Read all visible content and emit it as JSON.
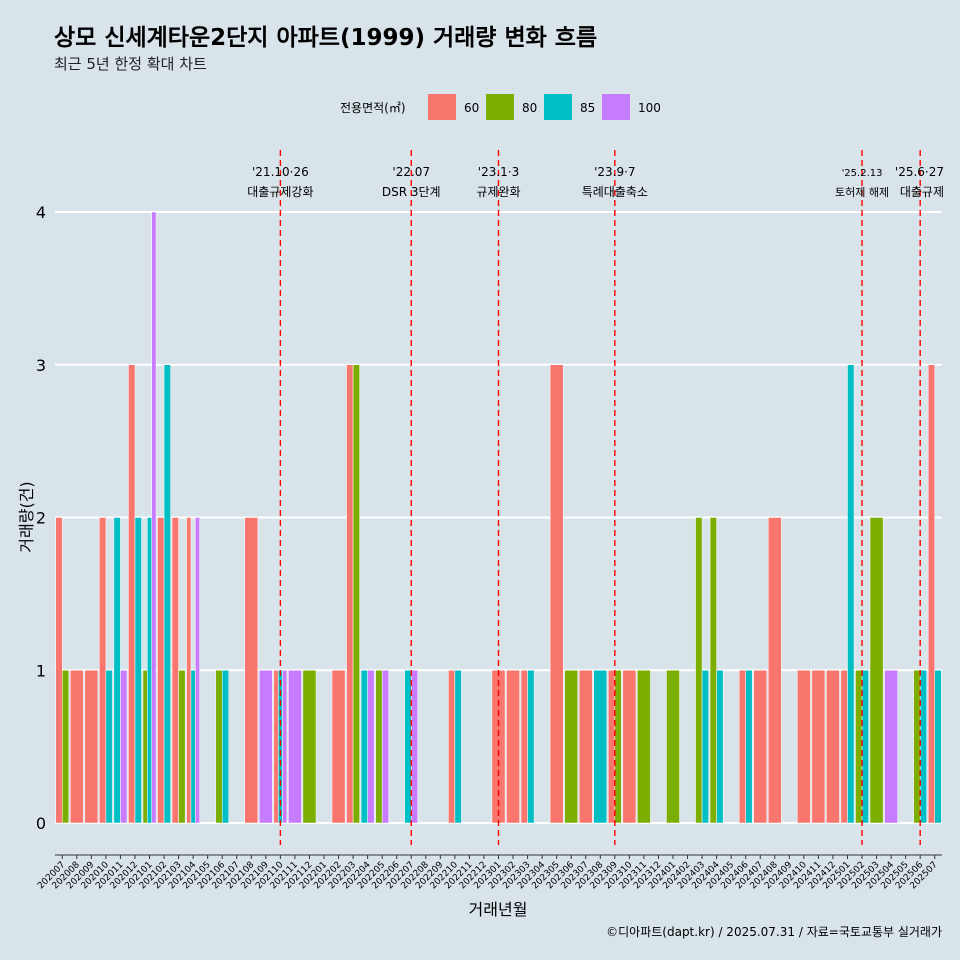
{
  "chart_data": {
    "type": "bar",
    "title": "상모 신세계타운2단지 아파트(1999) 거래량 변화 흐름",
    "subtitle": "최근 5년 한정 확대 차트",
    "xlabel": "거래년월",
    "ylabel": "거래량(건)",
    "caption": "©디아파트(dapt.kr) / 2025.07.31 / 자료=국토교통부 실거래가",
    "legend": {
      "title": "전용면적(㎡)",
      "position": "top"
    },
    "ylim": [
      0,
      4
    ],
    "yticks": [
      0,
      1,
      2,
      3,
      4
    ],
    "grid": true,
    "months": [
      "202007",
      "202008",
      "202009",
      "202010",
      "202011",
      "202012",
      "202101",
      "202102",
      "202103",
      "202104",
      "202105",
      "202106",
      "202107",
      "202108",
      "202109",
      "202110",
      "202111",
      "202112",
      "202201",
      "202202",
      "202203",
      "202204",
      "202205",
      "202206",
      "202207",
      "202208",
      "202209",
      "202210",
      "202211",
      "202212",
      "202301",
      "202302",
      "202303",
      "202304",
      "202305",
      "202306",
      "202307",
      "202308",
      "202309",
      "202310",
      "202311",
      "202312",
      "202401",
      "202402",
      "202403",
      "202404",
      "202405",
      "202406",
      "202407",
      "202408",
      "202409",
      "202410",
      "202411",
      "202412",
      "202501",
      "202502",
      "202503",
      "202504",
      "202505",
      "202506",
      "202507"
    ],
    "series": [
      {
        "name": "60",
        "color": "#F8766D"
      },
      {
        "name": "80",
        "color": "#7CAE00"
      },
      {
        "name": "85",
        "color": "#00BFC4"
      },
      {
        "name": "100",
        "color": "#C77CFF"
      }
    ],
    "data": [
      {
        "month": "202007",
        "area": "60",
        "count": 2
      },
      {
        "month": "202007",
        "area": "80",
        "count": 1
      },
      {
        "month": "202008",
        "area": "60",
        "count": 1
      },
      {
        "month": "202009",
        "area": "60",
        "count": 1
      },
      {
        "month": "202010",
        "area": "60",
        "count": 2
      },
      {
        "month": "202010",
        "area": "85",
        "count": 1
      },
      {
        "month": "202011",
        "area": "85",
        "count": 2
      },
      {
        "month": "202011",
        "area": "100",
        "count": 1
      },
      {
        "month": "202012",
        "area": "60",
        "count": 3
      },
      {
        "month": "202012",
        "area": "85",
        "count": 2
      },
      {
        "month": "202101",
        "area": "80",
        "count": 1
      },
      {
        "month": "202101",
        "area": "85",
        "count": 2
      },
      {
        "month": "202101",
        "area": "100",
        "count": 4
      },
      {
        "month": "202102",
        "area": "60",
        "count": 2
      },
      {
        "month": "202102",
        "area": "85",
        "count": 3
      },
      {
        "month": "202103",
        "area": "60",
        "count": 2
      },
      {
        "month": "202103",
        "area": "80",
        "count": 1
      },
      {
        "month": "202104",
        "area": "60",
        "count": 2
      },
      {
        "month": "202104",
        "area": "85",
        "count": 1
      },
      {
        "month": "202104",
        "area": "100",
        "count": 2
      },
      {
        "month": "202106",
        "area": "80",
        "count": 1
      },
      {
        "month": "202106",
        "area": "85",
        "count": 1
      },
      {
        "month": "202108",
        "area": "60",
        "count": 2
      },
      {
        "month": "202109",
        "area": "100",
        "count": 1
      },
      {
        "month": "202110",
        "area": "60",
        "count": 1
      },
      {
        "month": "202110",
        "area": "85",
        "count": 1
      },
      {
        "month": "202110",
        "area": "100",
        "count": 1
      },
      {
        "month": "202111",
        "area": "100",
        "count": 1
      },
      {
        "month": "202112",
        "area": "80",
        "count": 1
      },
      {
        "month": "202202",
        "area": "60",
        "count": 1
      },
      {
        "month": "202203",
        "area": "60",
        "count": 3
      },
      {
        "month": "202203",
        "area": "80",
        "count": 3
      },
      {
        "month": "202204",
        "area": "85",
        "count": 1
      },
      {
        "month": "202204",
        "area": "100",
        "count": 1
      },
      {
        "month": "202205",
        "area": "80",
        "count": 1
      },
      {
        "month": "202205",
        "area": "100",
        "count": 1
      },
      {
        "month": "202207",
        "area": "85",
        "count": 1
      },
      {
        "month": "202207",
        "area": "100",
        "count": 1
      },
      {
        "month": "202210",
        "area": "60",
        "count": 1
      },
      {
        "month": "202210",
        "area": "85",
        "count": 1
      },
      {
        "month": "202301",
        "area": "60",
        "count": 1
      },
      {
        "month": "202302",
        "area": "60",
        "count": 1
      },
      {
        "month": "202303",
        "area": "60",
        "count": 1
      },
      {
        "month": "202303",
        "area": "85",
        "count": 1
      },
      {
        "month": "202305",
        "area": "60",
        "count": 3
      },
      {
        "month": "202306",
        "area": "80",
        "count": 1
      },
      {
        "month": "202307",
        "area": "60",
        "count": 1
      },
      {
        "month": "202308",
        "area": "85",
        "count": 1
      },
      {
        "month": "202309",
        "area": "60",
        "count": 1
      },
      {
        "month": "202309",
        "area": "80",
        "count": 1
      },
      {
        "month": "202310",
        "area": "60",
        "count": 1
      },
      {
        "month": "202311",
        "area": "80",
        "count": 1
      },
      {
        "month": "202401",
        "area": "80",
        "count": 1
      },
      {
        "month": "202403",
        "area": "80",
        "count": 2
      },
      {
        "month": "202403",
        "area": "85",
        "count": 1
      },
      {
        "month": "202404",
        "area": "85",
        "count": 1
      },
      {
        "month": "202404",
        "area": "80",
        "count": 2
      },
      {
        "month": "202406",
        "area": "60",
        "count": 1
      },
      {
        "month": "202406",
        "area": "85",
        "count": 1
      },
      {
        "month": "202407",
        "area": "60",
        "count": 1
      },
      {
        "month": "202408",
        "area": "60",
        "count": 2
      },
      {
        "month": "202410",
        "area": "60",
        "count": 1
      },
      {
        "month": "202411",
        "area": "60",
        "count": 1
      },
      {
        "month": "202412",
        "area": "60",
        "count": 1
      },
      {
        "month": "202501",
        "area": "60",
        "count": 1
      },
      {
        "month": "202501",
        "area": "85",
        "count": 3
      },
      {
        "month": "202502",
        "area": "80",
        "count": 1
      },
      {
        "month": "202502",
        "area": "85",
        "count": 1
      },
      {
        "month": "202503",
        "area": "80",
        "count": 2
      },
      {
        "month": "202504",
        "area": "100",
        "count": 1
      },
      {
        "month": "202506",
        "area": "85",
        "count": 1
      },
      {
        "month": "202506",
        "area": "80",
        "count": 1
      },
      {
        "month": "202507",
        "area": "60",
        "count": 3
      },
      {
        "month": "202507",
        "area": "85",
        "count": 1
      }
    ],
    "annotations": [
      {
        "month": "202110",
        "date": "'21.10·26",
        "label": "대출규제강화"
      },
      {
        "month": "202207",
        "date": "'22.07",
        "label": "DSR 3단계"
      },
      {
        "month": "202301",
        "date": "'23.1·3",
        "label": "규제완화"
      },
      {
        "month": "202309",
        "date": "'23.9·7",
        "label": "특례대출축소"
      },
      {
        "month": "202502",
        "date": "'25.2.13",
        "label": "토허제 해제"
      },
      {
        "month": "202506",
        "date": "'25.6·27",
        "label": "대출규제"
      }
    ]
  }
}
